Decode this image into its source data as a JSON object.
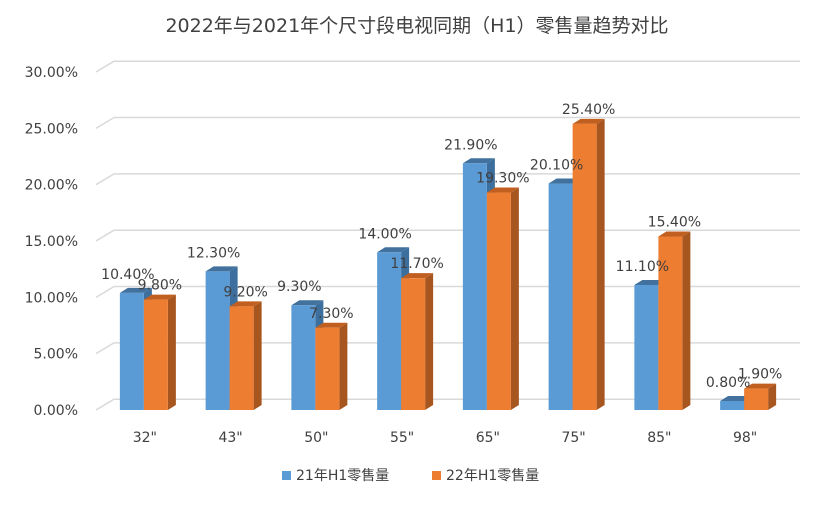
{
  "chart_data": {
    "type": "bar",
    "title": "2022年与2021年个尺寸段电视同期（H1）零售量趋势对比",
    "categories": [
      "32\"",
      "43\"",
      "50\"",
      "55\"",
      "65\"",
      "75\"",
      "85\"",
      "98\""
    ],
    "series": [
      {
        "name": "21年H1零售量",
        "values": [
          10.4,
          12.3,
          9.3,
          14.0,
          21.9,
          20.1,
          11.1,
          0.8
        ],
        "labels": [
          "10.40%",
          "12.30%",
          "9.30%",
          "14.00%",
          "21.90%",
          "20.10%",
          "11.10%",
          "0.80%"
        ],
        "color": "#5B9BD5",
        "side_color": "#3C6E9E",
        "top_color": "#41719C"
      },
      {
        "name": "22年H1零售量",
        "values": [
          9.8,
          9.2,
          7.3,
          11.7,
          19.3,
          25.4,
          15.4,
          1.9
        ],
        "labels": [
          "9.80%",
          "9.20%",
          "7.30%",
          "11.70%",
          "19.30%",
          "25.40%",
          "15.40%",
          "1.90%"
        ],
        "color": "#ED7D31",
        "side_color": "#A8561F",
        "top_color": "#C05F1F"
      }
    ],
    "yticks": [
      "0.00%",
      "5.00%",
      "10.00%",
      "15.00%",
      "20.00%",
      "25.00%",
      "30.00%"
    ],
    "ylim": [
      0,
      30
    ],
    "xlabel": "",
    "ylabel": "",
    "legend": "bottom"
  }
}
